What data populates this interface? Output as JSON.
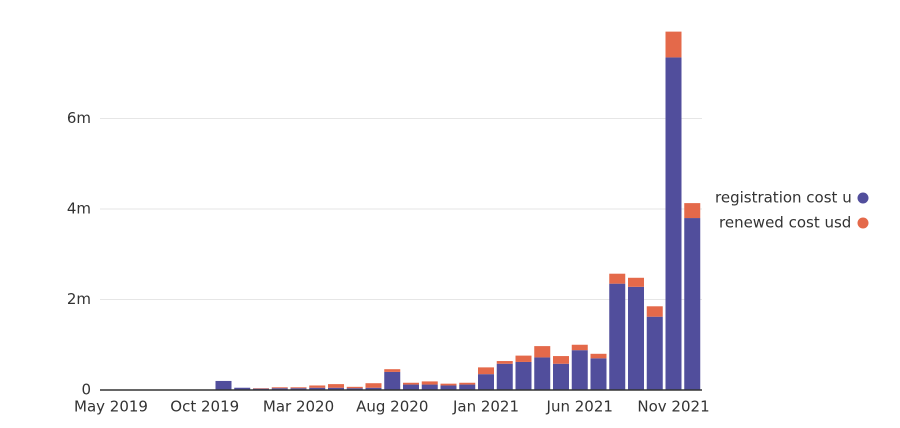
{
  "chart_data": {
    "type": "stacked-bar",
    "categories": [
      "May 2019",
      null,
      null,
      null,
      null,
      "Oct 2019",
      null,
      null,
      null,
      null,
      "Mar 2020",
      null,
      null,
      null,
      null,
      "Aug 2020",
      null,
      null,
      null,
      null,
      "Jan 2021",
      null,
      null,
      null,
      null,
      "Jun 2021",
      null,
      null,
      null,
      null,
      "Nov 2021",
      null
    ],
    "series": [
      {
        "name": "registration cost usd",
        "color": "#514e9c",
        "values": [
          10000,
          10000,
          10000,
          10000,
          10000,
          10000,
          200000,
          50000,
          30000,
          40000,
          40000,
          50000,
          50000,
          40000,
          50000,
          400000,
          120000,
          120000,
          100000,
          120000,
          350000,
          580000,
          620000,
          720000,
          580000,
          880000,
          700000,
          2350000,
          2280000,
          1620000,
          7350000,
          3800000
        ]
      },
      {
        "name": "renewed cost usd",
        "color": "#e4694a",
        "values": [
          0,
          0,
          0,
          0,
          0,
          0,
          0,
          0,
          10000,
          20000,
          20000,
          50000,
          80000,
          30000,
          100000,
          60000,
          40000,
          70000,
          40000,
          40000,
          150000,
          60000,
          140000,
          250000,
          170000,
          120000,
          100000,
          220000,
          200000,
          230000,
          570000,
          330000
        ]
      }
    ],
    "ylim": [
      0,
      8000000
    ],
    "yticks": [
      0,
      {
        "value": 2000000,
        "label": "2m"
      },
      {
        "value": 4000000,
        "label": "4m"
      },
      {
        "value": 6000000,
        "label": "6m"
      }
    ],
    "grid": true,
    "legend": "right"
  }
}
